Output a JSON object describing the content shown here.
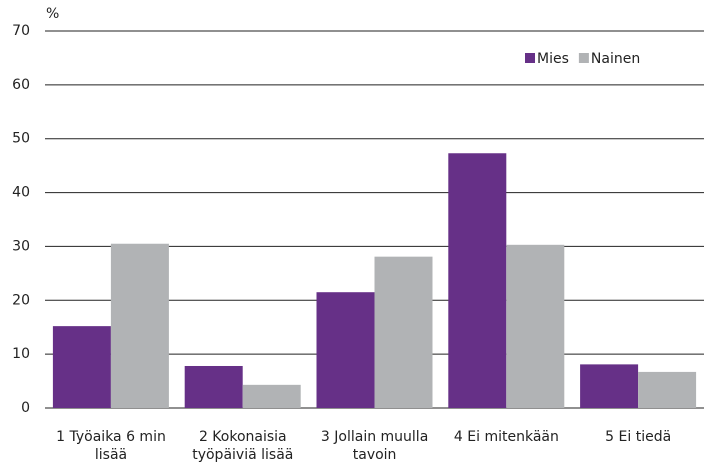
{
  "chart_data": {
    "type": "bar",
    "y_label": "%",
    "categories": [
      "1 Työaika 6 min\nlisää",
      "2 Kokonaisia\ntyöpäiviä lisää",
      "3 Jollain muulla\ntavoin",
      "4 Ei mitenkään",
      "5 Ei tiedä"
    ],
    "series": [
      {
        "name": "Mies",
        "color": "#663087",
        "values": [
          15.2,
          7.8,
          21.5,
          47.3,
          8.1
        ]
      },
      {
        "name": "Nainen",
        "color": "#b1b3b5",
        "values": [
          30.5,
          4.3,
          28.1,
          30.3,
          6.7
        ]
      }
    ],
    "ylim": [
      0,
      70
    ],
    "yticks": [
      0,
      10,
      20,
      30,
      40,
      50,
      60,
      70
    ],
    "grid": true,
    "legend": "top-right"
  }
}
